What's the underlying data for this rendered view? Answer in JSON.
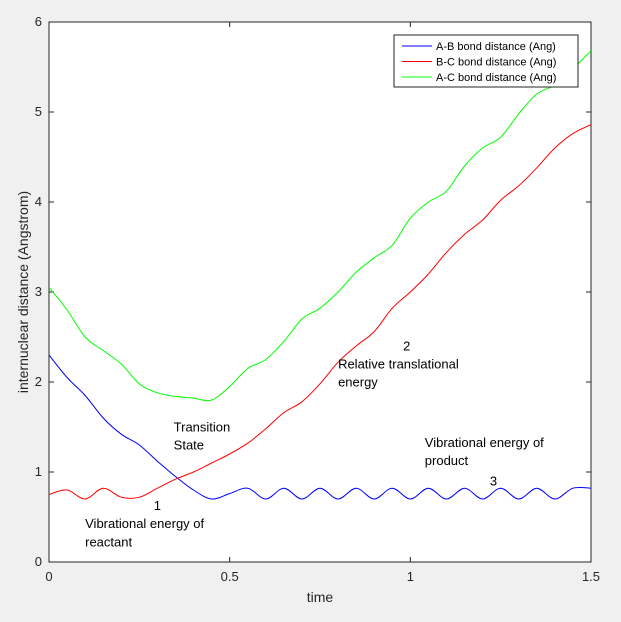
{
  "chart_data": {
    "type": "line",
    "title": "",
    "xlabel": "time",
    "ylabel": "internuclear distance (Angstrom)",
    "xlim": [
      0,
      1.5
    ],
    "ylim": [
      0,
      6
    ],
    "xticks": [
      0,
      0.5,
      1,
      1.5
    ],
    "xtick_labels": [
      "0",
      "0.5",
      "1",
      "1.5"
    ],
    "yticks": [
      0,
      1,
      2,
      3,
      4,
      5,
      6
    ],
    "ytick_labels": [
      "0",
      "1",
      "2",
      "3",
      "4",
      "5",
      "6"
    ],
    "grid": false,
    "legend_position": "top-right",
    "series": [
      {
        "name": "A-B bond distance (Ang)",
        "color": "#0000ff",
        "x": [
          0,
          0.05,
          0.1,
          0.15,
          0.2,
          0.25,
          0.3,
          0.35,
          0.4,
          0.45,
          0.5,
          0.55,
          0.6,
          0.65,
          0.7,
          0.75,
          0.8,
          0.85,
          0.9,
          0.95,
          1.0,
          1.05,
          1.1,
          1.15,
          1.2,
          1.25,
          1.3,
          1.35,
          1.4,
          1.45,
          1.5
        ],
        "y": [
          2.3,
          2.05,
          1.85,
          1.6,
          1.42,
          1.3,
          1.12,
          0.95,
          0.8,
          0.7,
          0.76,
          0.82,
          0.7,
          0.82,
          0.7,
          0.82,
          0.7,
          0.82,
          0.7,
          0.82,
          0.7,
          0.82,
          0.7,
          0.82,
          0.7,
          0.82,
          0.7,
          0.82,
          0.7,
          0.82,
          0.82
        ]
      },
      {
        "name": "B-C bond distance (Ang)",
        "color": "#ff0000",
        "x": [
          0,
          0.05,
          0.1,
          0.15,
          0.2,
          0.25,
          0.3,
          0.35,
          0.4,
          0.45,
          0.5,
          0.55,
          0.6,
          0.65,
          0.7,
          0.75,
          0.8,
          0.85,
          0.9,
          0.95,
          1.0,
          1.05,
          1.1,
          1.15,
          1.2,
          1.25,
          1.3,
          1.35,
          1.4,
          1.45,
          1.5
        ],
        "y": [
          0.75,
          0.8,
          0.7,
          0.82,
          0.72,
          0.72,
          0.82,
          0.92,
          1.0,
          1.1,
          1.2,
          1.32,
          1.48,
          1.66,
          1.78,
          1.98,
          2.22,
          2.4,
          2.56,
          2.82,
          3.0,
          3.2,
          3.44,
          3.64,
          3.8,
          4.02,
          4.18,
          4.38,
          4.6,
          4.76,
          4.86
        ]
      },
      {
        "name": "A-C bond distance (Ang)",
        "color": "#00ff00",
        "x": [
          0,
          0.05,
          0.1,
          0.15,
          0.2,
          0.25,
          0.3,
          0.35,
          0.4,
          0.45,
          0.5,
          0.55,
          0.6,
          0.65,
          0.7,
          0.75,
          0.8,
          0.85,
          0.9,
          0.95,
          1.0,
          1.05,
          1.1,
          1.15,
          1.2,
          1.25,
          1.3,
          1.35,
          1.4,
          1.45,
          1.5
        ],
        "y": [
          3.05,
          2.8,
          2.5,
          2.35,
          2.2,
          1.98,
          1.88,
          1.84,
          1.82,
          1.8,
          1.95,
          2.15,
          2.25,
          2.45,
          2.7,
          2.82,
          3.0,
          3.22,
          3.38,
          3.52,
          3.82,
          4.0,
          4.12,
          4.4,
          4.6,
          4.72,
          4.98,
          5.2,
          5.3,
          5.48,
          5.68
        ]
      }
    ],
    "annotations": [
      {
        "text": "1",
        "x": 0.29,
        "y": 0.58
      },
      {
        "text": "Vibrational energy of",
        "x": 0.1,
        "y": 0.38
      },
      {
        "text": "reactant",
        "x": 0.1,
        "y": 0.17
      },
      {
        "text": "Transition",
        "x": 0.345,
        "y": 1.45
      },
      {
        "text": "State",
        "x": 0.345,
        "y": 1.25
      },
      {
        "text": "2",
        "x": 0.98,
        "y": 2.35
      },
      {
        "text": "Relative translational",
        "x": 0.8,
        "y": 2.15
      },
      {
        "text": "energy",
        "x": 0.8,
        "y": 1.95
      },
      {
        "text": "Vibrational energy of",
        "x": 1.04,
        "y": 1.28
      },
      {
        "text": "product",
        "x": 1.04,
        "y": 1.08
      },
      {
        "text": "3",
        "x": 1.22,
        "y": 0.85
      }
    ]
  }
}
